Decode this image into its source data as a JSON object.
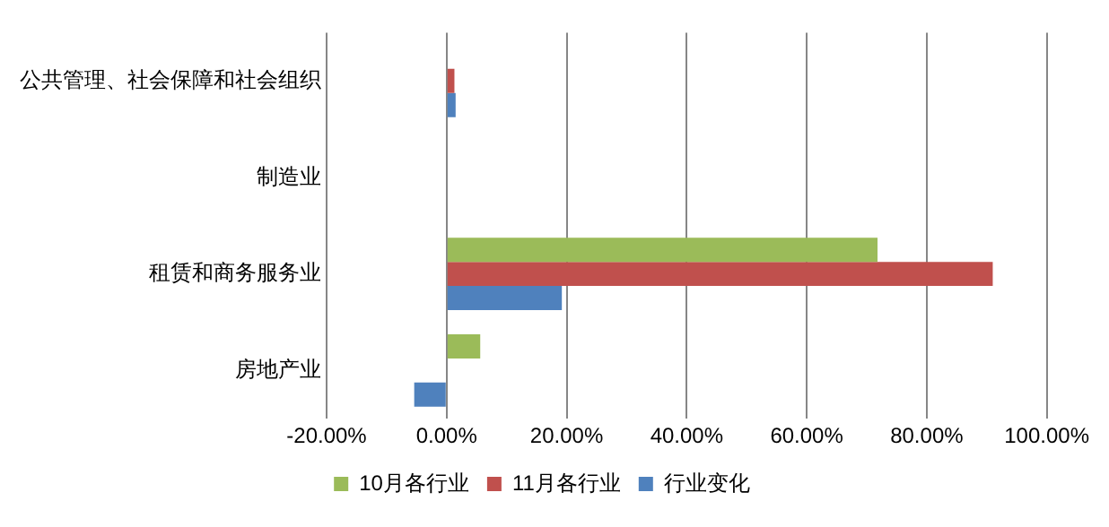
{
  "chart_data": {
    "type": "bar",
    "orientation": "horizontal",
    "categories": [
      "公共管理、社会保障和社会组织",
      "制造业",
      "租赁和商务服务业",
      "房地产业"
    ],
    "series": [
      {
        "name": "10月各行业",
        "color": "#9bbb59",
        "values": [
          0,
          0,
          71.8,
          5.6
        ]
      },
      {
        "name": "11月各行业",
        "color": "#c0504d",
        "values": [
          1.3,
          0,
          91,
          0
        ]
      },
      {
        "name": "行业变化",
        "color": "#4f81bd",
        "values": [
          1.5,
          0,
          19.2,
          -5.4
        ]
      }
    ],
    "xlim": [
      -20,
      100
    ],
    "xticks": [
      {
        "value": -20,
        "label": "-20.00%"
      },
      {
        "value": 0,
        "label": "0.00%"
      },
      {
        "value": 20,
        "label": "20.00%"
      },
      {
        "value": 40,
        "label": "40.00%"
      },
      {
        "value": 60,
        "label": "60.00%"
      },
      {
        "value": 80,
        "label": "80.00%"
      },
      {
        "value": 100,
        "label": "100.00%"
      }
    ],
    "grid": "x",
    "legend": "bottom"
  }
}
